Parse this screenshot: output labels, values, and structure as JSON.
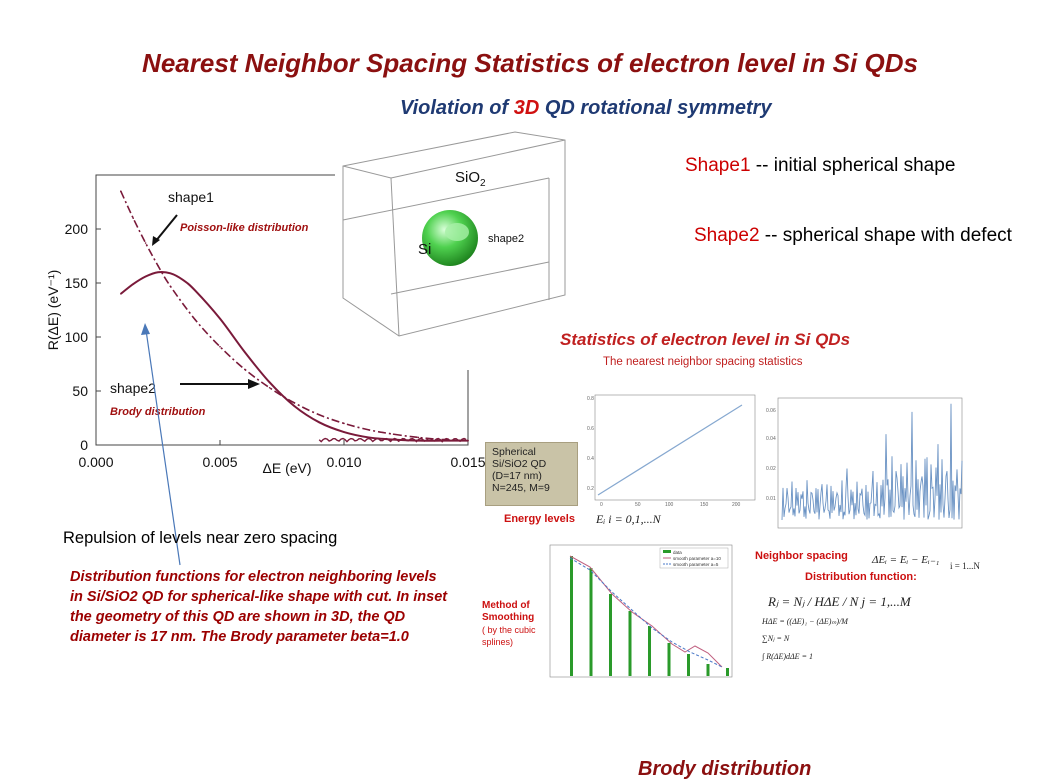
{
  "title": "Nearest Neighbor Spacing Statistics of electron level in Si QDs",
  "subtitle": {
    "prefix": "Violation of ",
    "highlight": "3D",
    "suffix": " QD rotational symmetry"
  },
  "shape1_note": {
    "name": "Shape1",
    "text": " -- initial spherical shape"
  },
  "shape2_note": {
    "name": "Shape2",
    "text": " -- spherical shape with defect"
  },
  "repulsion_note": "Repulsion of levels near zero spacing",
  "caption": "Distribution functions for electron neighboring levels in Si/SiO2 QD for spherical-like shape with cut. In inset the geometry of this QD are shown in 3D, the QD diameter is 17 nm. The Brody parameter beta=1.0",
  "inset_3d": {
    "sio2_label": "SiO",
    "sio2_sub": "2",
    "si_label": "Si",
    "shape_label": "shape2"
  },
  "stats_panel": {
    "title": "Statistics of electron level in Si QDs",
    "subtitle": "The nearest neighbor spacing statistics",
    "qd_box": [
      "Spherical",
      "Si/SiO2 QD",
      "(D=17 nm)",
      "N=245, M=9"
    ],
    "energy_levels": "Energy levels",
    "energy_eq": "Eᵢ     i = 0,1,...N",
    "method": "Method of Smoothing",
    "method_note": "( by the cubic splines)",
    "neighbor_spacing": "Neighbor  spacing",
    "neighbor_eq": "ΔEᵢ = Eᵢ − Eᵢ₋₁",
    "neighbor_range": "i = 1...N",
    "distribution_fn": "Distribution function:",
    "formula1": "Rⱼ = Nⱼ / HΔE / N    j = 1,...M",
    "formula2": "HΔE = ((ΔE)₁ − (ΔE)ₘ)/M",
    "formula3": "∑Nⱼ = N",
    "formula4": "∫ R(ΔE)dΔE = 1",
    "mini_legend": [
      "data",
      "smooth parameter a=10",
      "smooth parameter a=5"
    ]
  },
  "bottom_cut_text": "Brody distribution",
  "chart_data": {
    "type": "line",
    "title": "",
    "xlabel": "ΔE (eV)",
    "ylabel": "R(ΔE) (eV⁻¹)",
    "xlim": [
      0.0,
      0.015
    ],
    "ylim": [
      0,
      250
    ],
    "x_ticks": [
      "0.000",
      "0.005",
      "0.010",
      "0.015"
    ],
    "y_ticks": [
      "0",
      "50",
      "100",
      "150",
      "200"
    ],
    "series": [
      {
        "name": "Poisson-like distribution",
        "style": "dash-dot",
        "color": "#7a1a3a",
        "x": [
          0.001,
          0.0015,
          0.002,
          0.0025,
          0.003,
          0.004,
          0.005,
          0.006,
          0.007,
          0.008,
          0.009,
          0.01,
          0.011,
          0.012,
          0.013,
          0.014,
          0.015
        ],
        "y": [
          235,
          210,
          187,
          166,
          147,
          116,
          91,
          70,
          53,
          39,
          28,
          20,
          14,
          10,
          7,
          5,
          4
        ]
      },
      {
        "name": "Brody distribution",
        "style": "solid",
        "color": "#7a1a3a",
        "x": [
          0.001,
          0.0015,
          0.002,
          0.0025,
          0.003,
          0.0035,
          0.004,
          0.005,
          0.006,
          0.007,
          0.008,
          0.009,
          0.01,
          0.011,
          0.012,
          0.013,
          0.014,
          0.015
        ],
        "y": [
          140,
          149,
          156,
          160,
          159,
          153,
          143,
          117,
          86,
          58,
          36,
          21,
          12,
          7,
          5,
          4,
          4,
          4
        ]
      }
    ],
    "annotations": [
      "shape1",
      "Poisson-like distribution",
      "shape2",
      "Brody distribution"
    ]
  }
}
